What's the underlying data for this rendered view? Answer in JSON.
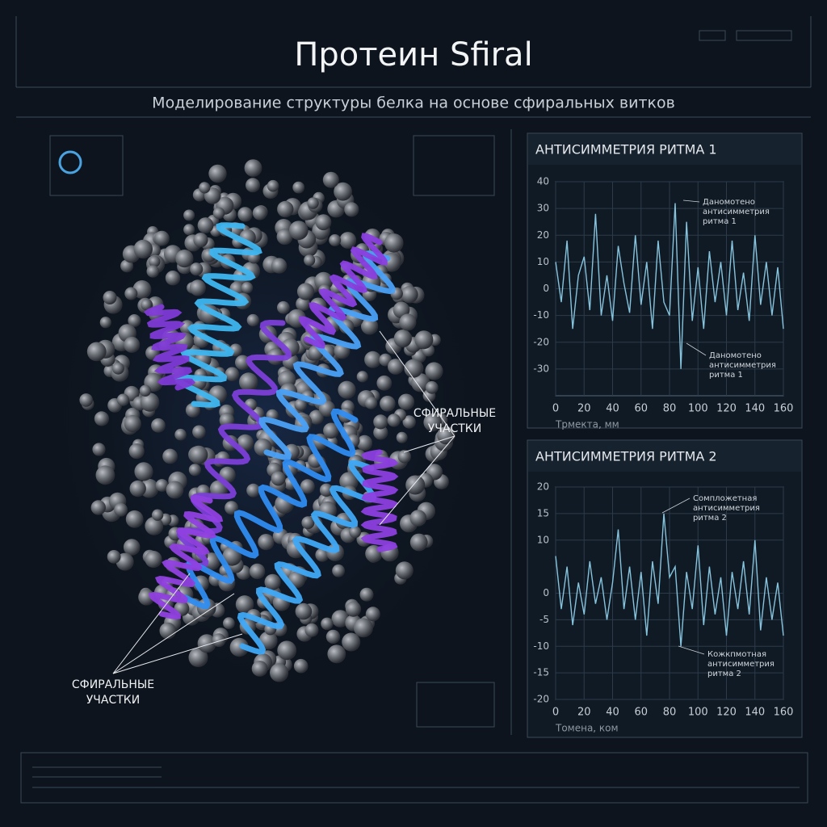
{
  "header": {
    "title": "Протеин Sfiral",
    "subtitle": "Моделирование структуры белка на основе сфиральных витков"
  },
  "helix_labels": [
    [
      "СФИРАЛЬНЫЕ",
      "УЧАСТКИ"
    ],
    [
      "СФИРАЛЬНЫЕ",
      "УЧАСТКИ"
    ]
  ],
  "chart_data": [
    {
      "type": "line",
      "title": "АНТИСИММЕТРИЯ РИТМА 1",
      "x_label": "Трмекта, мм",
      "color": "#86c3dc",
      "grid": true,
      "x": [
        0,
        4,
        8,
        12,
        16,
        20,
        24,
        28,
        32,
        36,
        40,
        44,
        48,
        52,
        56,
        60,
        64,
        68,
        72,
        76,
        80,
        84,
        88,
        92,
        96,
        100,
        104,
        108,
        112,
        116,
        120,
        124,
        128,
        132,
        136,
        140,
        144,
        148,
        152,
        156,
        160
      ],
      "values": [
        10,
        -5,
        18,
        -15,
        5,
        12,
        -8,
        28,
        -10,
        5,
        -12,
        16,
        2,
        -9,
        20,
        -6,
        10,
        -15,
        18,
        -5,
        -10,
        32,
        -30,
        25,
        -12,
        8,
        -15,
        14,
        -5,
        10,
        -10,
        18,
        -8,
        6,
        -12,
        20,
        -6,
        10,
        -10,
        8,
        -15
      ],
      "xlim": [
        0,
        160
      ],
      "xticks": [
        0,
        20,
        40,
        60,
        80,
        100,
        120,
        140,
        160
      ],
      "ylim": [
        -40,
        40
      ],
      "yticks": [
        40,
        30,
        20,
        10,
        0,
        -10,
        -20,
        -30
      ],
      "annotations": [
        [
          "Даномотено",
          "антисимметрия",
          "ритма 1"
        ],
        [
          "Даномотено",
          "антисимметрия",
          "ритма 1"
        ]
      ]
    },
    {
      "type": "line",
      "title": "АНТИСИММЕТРИЯ РИТМА 2",
      "x_label": "Томена, ком",
      "color": "#86c3dc",
      "grid": true,
      "x": [
        0,
        4,
        8,
        12,
        16,
        20,
        24,
        28,
        32,
        36,
        40,
        44,
        48,
        52,
        56,
        60,
        64,
        68,
        72,
        76,
        80,
        84,
        88,
        92,
        96,
        100,
        104,
        108,
        112,
        116,
        120,
        124,
        128,
        132,
        136,
        140,
        144,
        148,
        152,
        156,
        160
      ],
      "values": [
        7,
        -3,
        5,
        -6,
        2,
        -4,
        6,
        -2,
        3,
        -5,
        2,
        12,
        -3,
        5,
        -5,
        4,
        -8,
        6,
        -2,
        15,
        3,
        5,
        -10,
        4,
        -3,
        9,
        -6,
        5,
        -4,
        3,
        -8,
        4,
        -3,
        6,
        -4,
        10,
        -7,
        3,
        -5,
        2,
        -8
      ],
      "xlim": [
        0,
        160
      ],
      "xticks": [
        0,
        20,
        40,
        60,
        80,
        100,
        120,
        140,
        160
      ],
      "ylim": [
        -20,
        20
      ],
      "yticks": [
        20,
        15,
        10,
        0,
        -5,
        -10,
        -15,
        -20
      ],
      "annotations": [
        [
          "Сомпложетная",
          "антисимметрия",
          "ритма 2"
        ],
        [
          "Кожкпмотная",
          "антисимметрия",
          "ритма 2"
        ]
      ]
    }
  ]
}
